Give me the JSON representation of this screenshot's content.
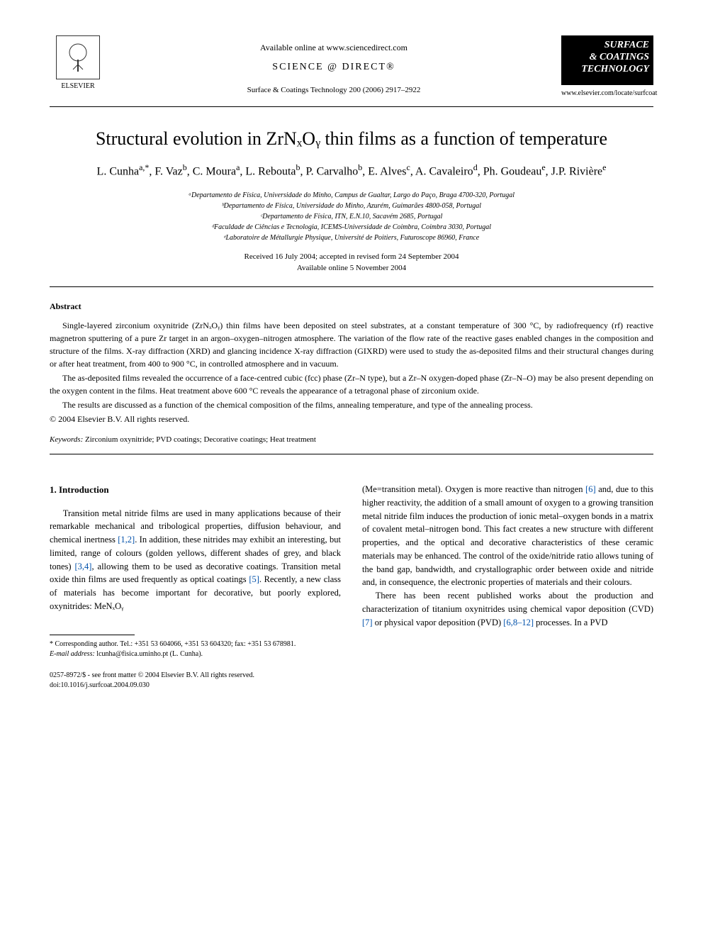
{
  "header": {
    "available_online": "Available online at www.sciencedirect.com",
    "science_direct": "SCIENCE @ DIRECT®",
    "citation": "Surface & Coatings Technology 200 (2006) 2917–2922",
    "elsevier_label": "ELSEVIER",
    "journal_logo_line1": "SURFACE",
    "journal_logo_line2": "& COATINGS",
    "journal_logo_line3": "TECHNOLOGY",
    "journal_url": "www.elsevier.com/locate/surfcoat"
  },
  "title": "Structural evolution in ZrNₓOᵧ thin films as a function of temperature",
  "authors_html": "L. Cunha<sup>a,*</sup>, F. Vaz<sup>b</sup>, C. Moura<sup>a</sup>, L. Rebouta<sup>b</sup>, P. Carvalho<sup>b</sup>, E. Alves<sup>c</sup>, A. Cavaleiro<sup>d</sup>, Ph. Goudeau<sup>e</sup>, J.P. Rivière<sup>e</sup>",
  "affiliations": {
    "a": "ᵃDepartamento de Física, Universidade do Minho, Campus de Gualtar, Largo do Paço, Braga 4700-320, Portugal",
    "b": "ᵇDepartamento de Física, Universidade do Minho, Azurém, Guimarães 4800-058, Portugal",
    "c": "ᶜDepartamento de Física, ITN, E.N.10, Sacavém 2685, Portugal",
    "d": "ᵈFaculdade de Ciências e Tecnologia, ICEMS-Universidade de Coimbra, Coimbra 3030, Portugal",
    "e": "ᵉLaboratoire de Métallurgie Physique, Université de Poitiers, Futuroscope 86960, France"
  },
  "dates": {
    "received": "Received 16 July 2004; accepted in revised form 24 September 2004",
    "online": "Available online 5 November 2004"
  },
  "abstract": {
    "heading": "Abstract",
    "p1": "Single-layered zirconium oxynitride (ZrNₓOᵧ) thin films have been deposited on steel substrates, at a constant temperature of 300 °C, by radiofrequency (rf) reactive magnetron sputtering of a pure Zr target in an argon–oxygen–nitrogen atmosphere. The variation of the flow rate of the reactive gases enabled changes in the composition and structure of the films. X-ray diffraction (XRD) and glancing incidence X-ray diffraction (GIXRD) were used to study the as-deposited films and their structural changes during or after heat treatment, from 400 to 900 °C, in controlled atmosphere and in vacuum.",
    "p2": "The as-deposited films revealed the occurrence of a face-centred cubic (fcc) phase (Zr–N type), but a Zr–N oxygen-doped phase (Zr–N–O) may be also present depending on the oxygen content in the films. Heat treatment above 600 °C reveals the appearance of a tetragonal phase of zirconium oxide.",
    "p3": "The results are discussed as a function of the chemical composition of the films, annealing temperature, and type of the annealing process.",
    "copyright": "© 2004 Elsevier B.V. All rights reserved."
  },
  "keywords": {
    "label": "Keywords:",
    "text": " Zirconium oxynitride; PVD coatings; Decorative coatings; Heat treatment"
  },
  "intro": {
    "heading": "1. Introduction",
    "left_p1_pre": "Transition metal nitride films are used in many applications because of their remarkable mechanical and tribological properties, diffusion behaviour, and chemical inertness ",
    "left_ref1": "[1,2]",
    "left_p1_mid1": ". In addition, these nitrides may exhibit an interesting, but limited, range of colours (golden yellows, different shades of grey, and black tones) ",
    "left_ref2": "[3,4]",
    "left_p1_mid2": ", allowing them to be used as decorative coatings. Transition metal oxide thin films are used frequently as optical coatings ",
    "left_ref3": "[5]",
    "left_p1_end": ". Recently, a new class of materials has become important for decorative, but poorly explored, oxynitrides: MeNₓOᵧ",
    "right_p1_pre": "(Me=transition metal). Oxygen is more reactive than nitrogen ",
    "right_ref1": "[6]",
    "right_p1_end": " and, due to this higher reactivity, the addition of a small amount of oxygen to a growing transition metal nitride film induces the production of ionic metal–oxygen bonds in a matrix of covalent metal–nitrogen bond. This fact creates a new structure with different properties, and the optical and decorative characteristics of these ceramic materials may be enhanced. The control of the oxide/nitride ratio allows tuning of the band gap, bandwidth, and crystallographic order between oxide and nitride and, in consequence, the electronic properties of materials and their colours.",
    "right_p2_pre": "There has been recent published works about the production and characterization of titanium oxynitrides using chemical vapor deposition (CVD) ",
    "right_ref2": "[7]",
    "right_p2_mid": " or physical vapor deposition (PVD) ",
    "right_ref3": "[6,8–12]",
    "right_p2_end": " processes. In a PVD"
  },
  "footnotes": {
    "corr": "* Corresponding author. Tel.: +351 53 604066, +351 53 604320; fax: +351 53 678981.",
    "email_label": "E-mail address:",
    "email": " lcunha@fisica.uminho.pt (L. Cunha)."
  },
  "footer": {
    "line1": "0257-8972/$ - see front matter © 2004 Elsevier B.V. All rights reserved.",
    "line2": "doi:10.1016/j.surfcoat.2004.09.030"
  },
  "colors": {
    "link": "#0050aa",
    "text": "#000000",
    "background": "#ffffff"
  }
}
